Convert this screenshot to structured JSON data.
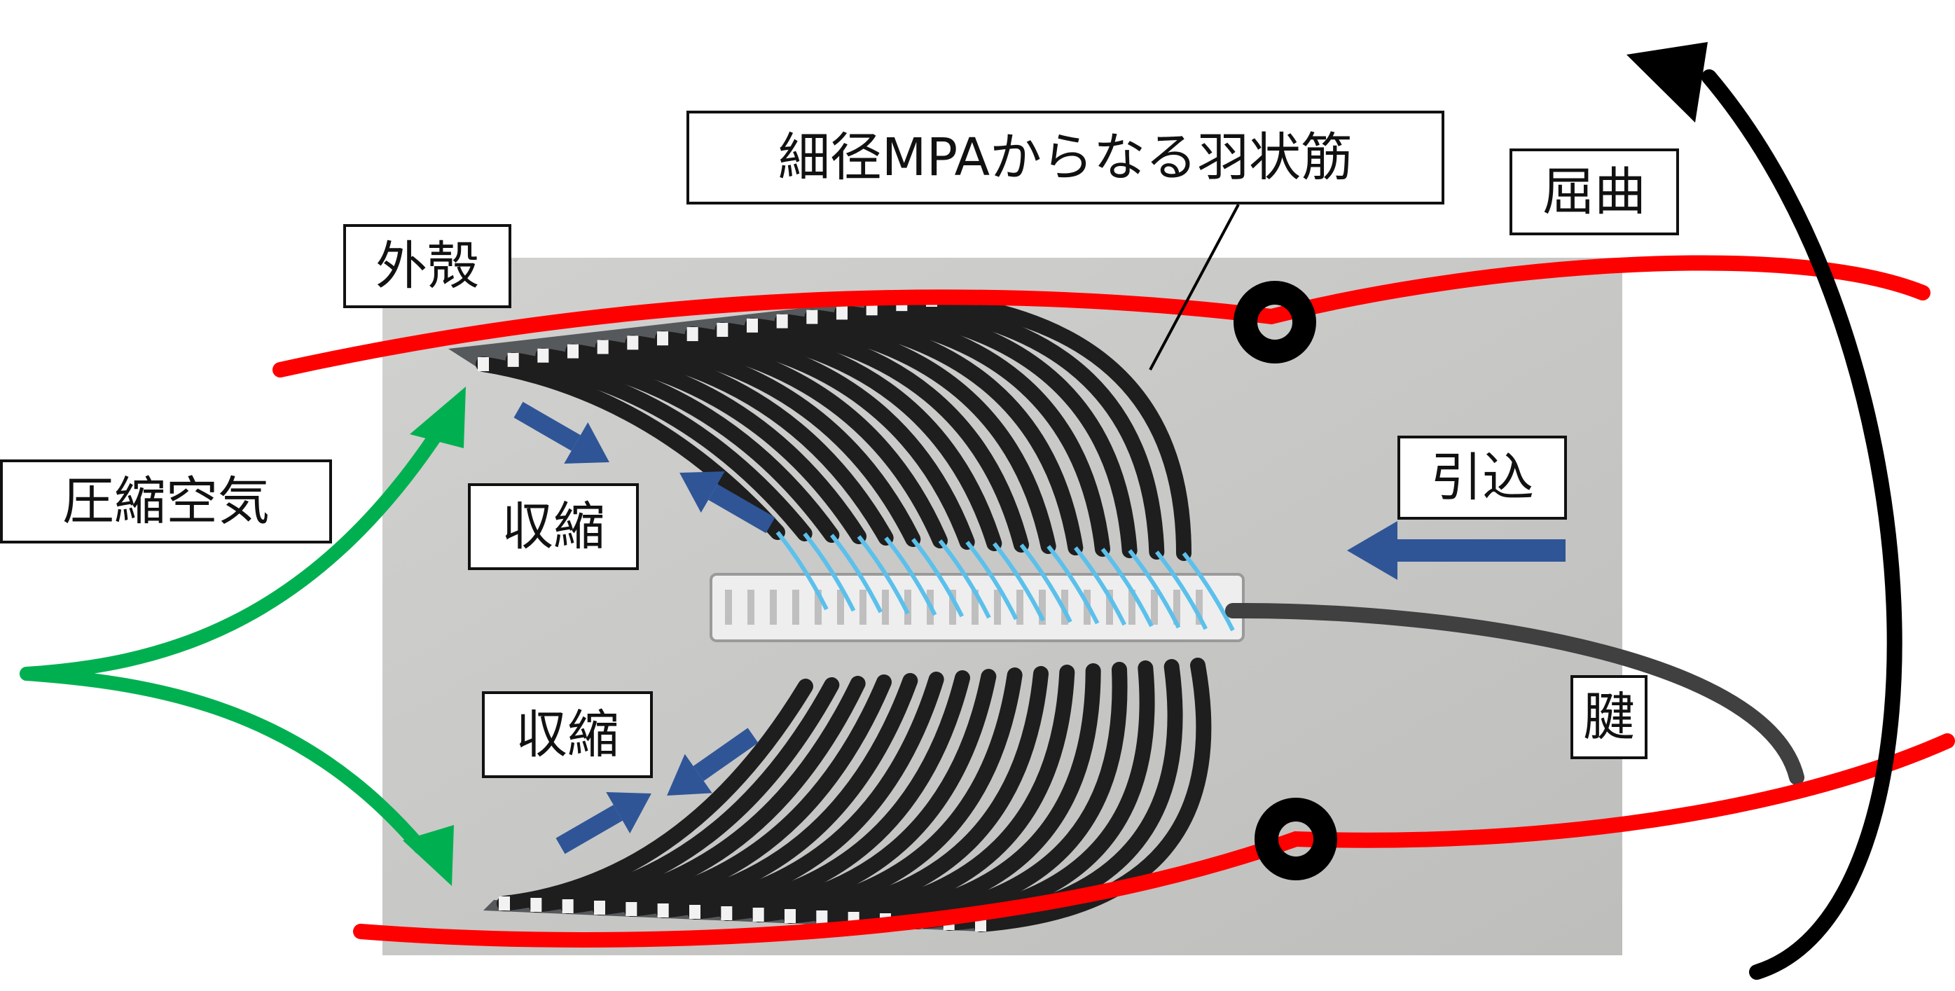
{
  "labels": {
    "title": "細径MPAからなる羽状筋",
    "kukkyoku": "屈曲",
    "gaikaku": "外殻",
    "assyuku": "圧縮空気",
    "shukushuku_top": "収縮",
    "hikikomi": "引込",
    "shukushuku_bottom": "収縮",
    "ken": "腱"
  },
  "colors": {
    "shell": "#ff0000",
    "air": "#00b050",
    "contraction": "#2f5597",
    "bend": "#000000",
    "tendon": "#404040",
    "photo_bg": "#c9c9c7",
    "muscle": "#1e1e1e",
    "tube": "#5bc0eb"
  },
  "photo": {
    "description_icon": "pennate-muscle-photo"
  }
}
